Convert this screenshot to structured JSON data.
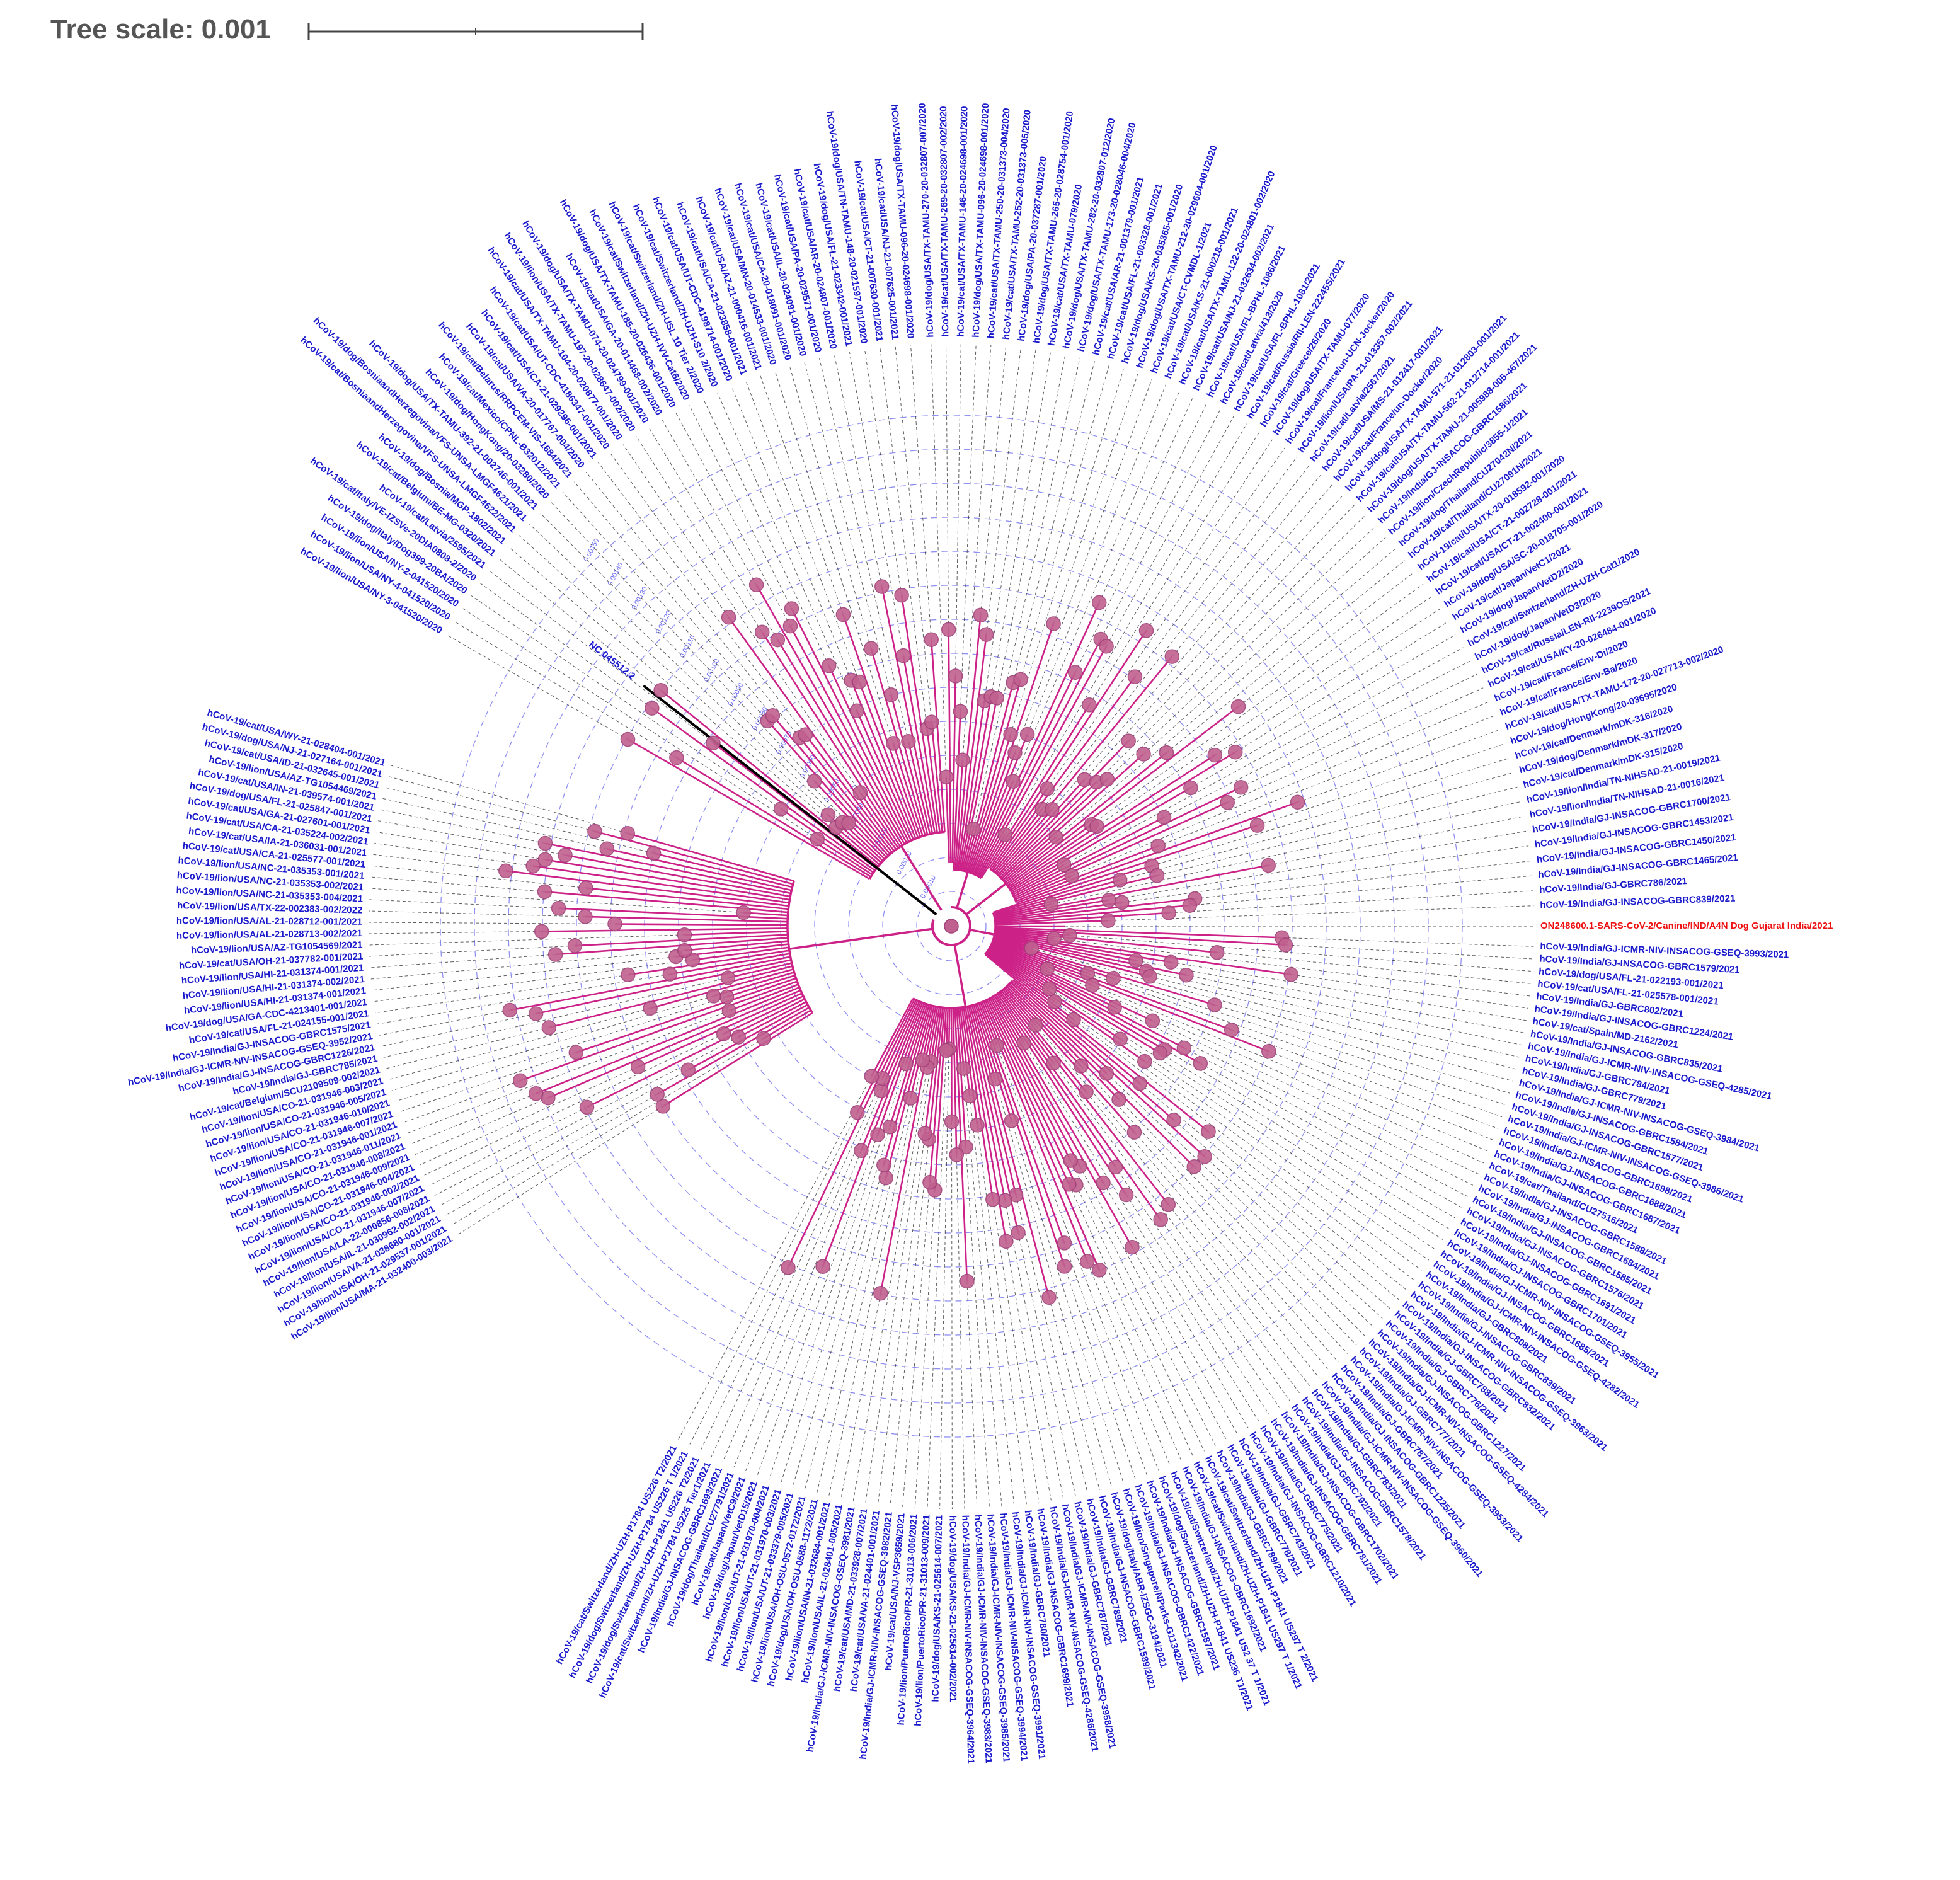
{
  "scale": {
    "label": "Tree scale: 0.001"
  },
  "colors": {
    "branch": "#cc2288",
    "node": "#c0608f",
    "node_stroke": "#a04078",
    "label": "#1a1acc",
    "highlight": "#ee1111",
    "outgroup": "#000000",
    "ring": "#6a6aee",
    "guide": "#333333"
  },
  "outgroup_label": "NC 045512.2",
  "ring_labels": [
    "0.00010",
    "0.00020",
    "0.00030",
    "0.00040",
    "0.00050",
    "0.00060",
    "0.00070",
    "0.00080",
    "0.00090",
    "0.00100",
    "0.00110",
    "0.00120",
    "0.00130",
    "0.00140",
    "0.00150"
  ],
  "leaves_upper_right": [
    "hCoV-19/dog/USA/TX-TAMU-270-20-032807-007/2020",
    "hCoV-19/cat/USA/TX-TAMU-269-20-032807-002/2020",
    "hCoV-19/cat/USA/TX-TAMU-146-20-024698-001/2020",
    "hCoV-19/dog/USA/TX-TAMU-096-20-024698-001/2020",
    "hCoV-19/cat/USA/TX-TAMU-250-20-031373-004/2020",
    "hCoV-19/cat/USA/TX-TAMU-252-20-031373-005/2020",
    "hCoV-19/dog/USA/PA-20-037287-001/2020",
    "hCoV-19/dog/USA/TX-TAMU-265-20-028754-001/2020",
    "hCoV-19/cat/USA/TX-TAMU-079/2020",
    "hCoV-19/dog/USA/TX-TAMU-282-20-032807-012/2020",
    "hCoV-19/dog/USA/TX-TAMU-173-20-028046-004/2020",
    "hCoV-19/cat/USA/AR-21-001379-001/2021",
    "hCoV-19/cat/USA/FL-21-003328-001/2021",
    "hCoV-19/dog/USA/KS-20-035365-001/2020",
    "hCoV-19/dog/USA/TX-TAMU-212-20-029604-001/2020",
    "hCoV-19/cat/USA/CT-CVMDL-1/2021",
    "hCoV-19/cat/USA/KS-21-000218-001/2021",
    "hCoV-19/cat/USA/TX-TAMU-122-20-024801-002/2020",
    "hCoV-19/cat/USA/NJ-21-032634-002/2021",
    "hCoV-19/cat/USA/FL-BPHL-1086/2021",
    "hCoV-19/cat/Latvia/413/2020",
    "hCoV-19/cat/USA/FL-BPHL-1081/2021",
    "hCoV-19/cat/Russia/RII-LEN-22245S/2021",
    "hCoV-19/cat/Greece/26/2020",
    "hCoV-19/dog/USA/TX-TAMU-077/2020",
    "hCoV-19/cat/France/un-UCN-Jocker/2020",
    "hCoV-19/lion/USA/PA-21-013357-002/2021",
    "hCoV-19/cat/Latvia/2567/2021",
    "hCoV-19/cat/USA/MS-21-012417-001/2021",
    "hCoV-19/cat/France/un-Docker/2020",
    "hCoV-19/dog/USA/TX-TAMU-571-21-012803-001/2021",
    "hCoV-19/cat/USA/TX-TAMU-562-21-012714-001/2021",
    "hCoV-19/dog/USA/TX-TAMU-21-005988-005-467/2021",
    "hCoV-19/India/GJ-INSACOG-GBRC1586/2021",
    "hCoV-19/lion/CzechRepublic/3855-1/2021",
    "hCoV-19/dog/Thailand/CU27042N/2021",
    "hCoV-19/cat/Thailand/CU27091N/2021",
    "hCoV-19/cat/USA/TX-20-018592-001/2020",
    "hCoV-19/cat/USA/CT-21-002728-001/2021",
    "hCoV-19/cat/USA/CT-21-002400-001/2021",
    "hCoV-19/dog/USA/SC-20-018705-001/2020",
    "hCoV-19/cat/Japan/VetC1/2021",
    "hCoV-19/dog/Japan/VetD2/2020",
    "hCoV-19/cat/Switzerland/ZH-UZH-Cat1/2020",
    "hCoV-19/dog/Japan/VetD3/2020",
    "hCoV-19/cat/Russia/LEN-RII-2239OS/2021",
    "hCoV-19/cat/USA/KY-20-026484-001/2020",
    "hCoV-19/cat/France/Env-Di/2020",
    "hCoV-19/cat/France/Env-Ba/2020",
    "hCoV-19/cat/USA/TX-TAMU-172-20-027713-002/2020",
    "hCoV-19/dog/HongKong/20-03695/2020",
    "hCoV-19/cat/Denmark/mDK-316/2020",
    "hCoV-19/dog/Denmark/mDK-317/2020",
    "hCoV-19/cat/Denmark/mDK-315/2020",
    "hCoV-19/lion/India/TN-NIHSAD-21-0019/2021",
    "hCoV-19/lion/India/TN-NIHSAD-21-0016/2021",
    "hCoV-19/India/GJ-INSACOG-GBRC1700/2021",
    "hCoV-19/India/GJ-INSACOG-GBRC1453/2021",
    "hCoV-19/India/GJ-INSACOG-GBRC1450/2021",
    "hCoV-19/India/GJ-INSACOG-GBRC1465/2021",
    "hCoV-19/India/GJ-GBRC786/2021",
    "hCoV-19/India/GJ-INSACOG-GBRC839/2021"
  ],
  "highlight_leaf": "ON248600.1-SARS-CoV-2/Canine/IND/A4N Dog Gujarat India/2021",
  "leaves_lower_right": [
    "hCoV-19/India/GJ-ICMR-NIV-INSACOG-GSEQ-3993/2021",
    "hCoV-19/India/GJ-INSACOG-GBRC1579/2021",
    "hCoV-19/dog/USA/FL-21-022193-001/2021",
    "hCoV-19/cat/USA/FL-21-025578-001/2021",
    "hCoV-19/India/GJ-GBRC802/2021",
    "hCoV-19/India/GJ-INSACOG-GBRC1224/2021",
    "hCoV-19/cat/Spain/MD-2162/2021",
    "hCoV-19/India/GJ-INSACOG-GBRC835/2021",
    "hCoV-19/India/GJ-ICMR-NIV-INSACOG-GSEQ-4285/2021",
    "hCoV-19/India/GJ-GBRC784/2021",
    "hCoV-19/India/GJ-GBRC779/2021",
    "hCoV-19/India/GJ-ICMR-NIV-INSACOG-GSEQ-3984/2021",
    "hCoV-19/India/GJ-INSACOG-GBRC1584/2021",
    "hCoV-19/India/GJ-INSACOG-GBRC1577/2021",
    "hCoV-19/India/GJ-ICMR-NIV-INSACOG-GSEQ-3986/2021",
    "hCoV-19/India/GJ-INSACOG-GBRC1698/2021",
    "hCoV-19/India/GJ-INSACOG-GBRC1688/2021",
    "hCoV-19/India/GJ-INSACOG-GBRC1687/2021",
    "hCoV-19/cat/Thailand/CU27516/2021",
    "hCoV-19/India/GJ-INSACOG-GBRC1588/2021",
    "hCoV-19/India/GJ-INSACOG-GBRC1684/2021",
    "hCoV-19/India/GJ-INSACOG-GBRC1585/2021",
    "hCoV-19/India/GJ-INSACOG-GBRC1576/2021",
    "hCoV-19/India/GJ-INSACOG-GBRC1691/2021",
    "hCoV-19/India/GJ-INSACOG-GBRC1701/2021",
    "hCoV-19/India/GJ-ICMR-NIV-INSACOG-GSEQ-3955/2021",
    "hCoV-19/India/GJ-INSACOG-GBRC1685/2021",
    "hCoV-19/India/GJ-ICMR-NIV-INSACOG-GSEQ-4282/2021",
    "hCoV-19/India/GJ-GBRC808/2021",
    "hCoV-19/India/GJ-INSACOG-GBRC839/2021",
    "hCoV-19/India/GJ-ICMR-NIV-INSACOG-GSEQ-3963/2021",
    "hCoV-19/India/GJ-INSACOG-GBRC832/2021",
    "hCoV-19/India/GJ-GBRC788/2021",
    "hCoV-19/India/GJ-GBRC776/2021",
    "hCoV-19/India/GJ-INSACOG-GBRC1227/2021",
    "hCoV-19/India/GJ-ICMR-NIV-INSACOG-GSEQ-4284/2021",
    "hCoV-19/India/GJ-GBRC777/2021",
    "hCoV-19/India/GJ-ICMR-NIV-INSACOG-GSEQ-3953/2021",
    "hCoV-19/India/GJ-GBRC787/2021",
    "hCoV-19/India/GJ-INSACOG-GBRC1225/2021",
    "hCoV-19/India/GJ-ICMR-NIV-INSACOG-GSEQ-3960/2021",
    "hCoV-19/India/GJ-GBRC783/2021",
    "hCoV-19/India/GJ-INSACOG-GBRC1578/2021",
    "hCoV-19/India/GJ-GBRC792/2021",
    "hCoV-19/India/GJ-INSACOG-GBRC1702/2021",
    "hCoV-19/India/GJ-INSACOG-GBRC781/2021",
    "hCoV-19/India/GJ-GBRC775/2021",
    "hCoV-19/India/GJ-INSACOG-GBRC1210/2021",
    "hCoV-19/India/GJ-GBRC743/2021",
    "hCoV-19/India/GJ-GBRC778/2021",
    "hCoV-19/India/GJ-GBRC789/2021",
    "hCoV-19/cat/Switzerland/ZH-UZH-P1841 US297 T 2/2021",
    "hCoV-19/cat/Switzerland/ZH-UZH-P1841 US297 T 1/2021",
    "hCoV-19/India/GJ-INSACOG-GBRC1692/2021",
    "hCoV-19/cat/Switzerland/ZH-UZH-P1841 US2 37 T 1/2021",
    "hCoV-19/dog/Switzerland/ZH-UZH-P1841 US236 T1/2021",
    "hCoV-19/India/GJ-INSACOG-GBRC1587/2021",
    "hCoV-19/India/GJ-INSACOG-GBRC1422/2021",
    "hCoV-19/lion/Singapore/NParks-G11342/2021",
    "hCoV-19/dog/Italy/ABR-IZSGC-3194/2021",
    "hCoV-19/India/GJ-INSACOG-GBRC1589/2021",
    "hCoV-19/India/GJ-GBRC789/2021",
    "hCoV-19/India/GJ-GBRC787/2021",
    "hCoV-19/India/GJ-ICMR-NIV-INSACOG-GSEQ-3958/2021",
    "hCoV-19/India/GJ-ICMR-NIV-INSACOG-GSEQ-4286/2021",
    "hCoV-19/India/GJ-INSACOG-GBRC1699/2021",
    "hCoV-19/India/GJ-GBRC780/2021",
    "hCoV-19/India/GJ-ICMR-NIV-INSACOG-GSEQ-3991/2021",
    "hCoV-19/India/GJ-ICMR-NIV-INSACOG-GSEQ-3994/2021",
    "hCoV-19/India/GJ-ICMR-NIV-INSACOG-GSEQ-3985/2021",
    "hCoV-19/India/GJ-ICMR-NIV-INSACOG-GSEQ-3983/2021",
    "hCoV-19/India/GJ-ICMR-NIV-INSACOG-GSEQ-3964/2021",
    "hCoV-19/dog/USA/KS-21-025614-002/2021",
    "hCoV-19/dog/USA/KS-21-025614-007/2021",
    "hCoV-19/lion/PuertoRico/PR-21-31013-009/2021",
    "hCoV-19/lion/PuertoRico/PR-21-31013-006/2021",
    "hCoV-19/cat/USA/NJ-VSP3659/2021",
    "hCoV-19/India/GJ-ICMR-NIV-INSACOG-GSEQ-3982/2021",
    "hCoV-19/cat/USA/VA-21-024401-001/2021",
    "hCoV-19/cat/USA/MD-21-033928-007/2021",
    "hCoV-19/India/GJ-ICMR-NIV-INSACOG-GSEQ-3981/2021",
    "hCoV-19/lion/USA/IL-21-028401-005/2021",
    "hCoV-19/lion/USA/IN-21-032684-001/2021",
    "hCoV-19/dog/USA/OH-OSU-0588-1172/2021",
    "hCoV-19/lion/USA/OH-OSU-0572-0172/2021",
    "hCoV-19/lion/USA/UT-21-033379-005/2021",
    "hCoV-19/lion/USA/UT-21-031970-003/2021",
    "hCoV-19/lion/USA/UT-21-031970-004/2021",
    "hCoV-19/dog/Japan/VetD15/2021",
    "hCoV-19/cat/Japan/VetC9/2021",
    "hCoV-19/dog/Thailand/CU27791/2021",
    "hCoV-19/India/GJ-INSACOG-GBRC1693/2021",
    "hCoV-19/cat/Switzerland/ZH-UZH-P1784 US226 Tier1/2021",
    "hCoV-19/dog/Switzerland/ZH-UZH-P1841 US226 T2/2021",
    "hCoV-19/dog/Switzerland/ZH-UZH-P1784 US226 T 1/2021",
    "hCoV-19/cat/Switzerland/ZH-UZH-P1784 US226 T2/2021"
  ],
  "leaves_left": [
    "hCoV-19/lion/USA/MA-21-032400-003/2021",
    "hCoV-19/lion/USA/OH-21-029537-001/2021",
    "hCoV-19/lion/USA/VA-21-038680-001/2021",
    "hCoV-19/lion/USA/IL-21-030962-002/2021",
    "hCoV-19/lion/USA/LA-22-000856-008/2021",
    "hCoV-19/lion/USA/CO-21-031946-007/2021",
    "hCoV-19/lion/USA/CO-21-031946-002/2021",
    "hCoV-19/lion/USA/CO-21-031946-004/2021",
    "hCoV-19/lion/USA/CO-21-031946-009/2021",
    "hCoV-19/lion/USA/CO-21-031946-008/2021",
    "hCoV-19/lion/USA/CO-21-031946-011/2021",
    "hCoV-19/lion/USA/CO-21-031946-001/2021",
    "hCoV-19/lion/USA/CO-21-031946-007/2021",
    "hCoV-19/lion/USA/CO-21-031946-010/2021",
    "hCoV-19/lion/USA/CO-21-031946-005/2021",
    "hCoV-19/lion/USA/CO-21-031946-003/2021",
    "hCoV-19/cat/Belgium/SCU2109509-002/2021",
    "hCoV-19/India/GJ-GBRC785/2021",
    "hCoV-19/India/GJ-INSACOG-GBRC1226/2021",
    "hCoV-19/India/GJ-ICMR-NIV-INSACOG-GSEQ-3952/2021",
    "hCoV-19/India/GJ-INSACOG-GBRC1575/2021",
    "hCoV-19/cat/USA/FL-21-024155-001/2021",
    "hCoV-19/dog/USA/GA-CDC-4213401-001/2021",
    "hCoV-19/lion/USA/HI-21-031374-001/2021",
    "hCoV-19/lion/USA/HI-21-031374-002/2021",
    "hCoV-19/lion/USA/HI-21-031374-001/2021",
    "hCoV-19/cat/USA/OH-21-037782-001/2021",
    "hCoV-19/lion/USA/AZ-TG1054569/2021",
    "hCoV-19/lion/USA/AL-21-028713-002/2021",
    "hCoV-19/lion/USA/AL-21-028712-001/2021",
    "hCoV-19/lion/USA/TX-22-002383-002/2022",
    "hCoV-19/lion/USA/NC-21-035353-004/2021",
    "hCoV-19/lion/USA/NC-21-035353-002/2021",
    "hCoV-19/lion/USA/NC-21-035353-001/2021",
    "hCoV-19/cat/USA/CA-21-025577-001/2021",
    "hCoV-19/cat/USA/IA-21-036031-001/2021",
    "hCoV-19/cat/USA/CA-21-035224-002/2021",
    "hCoV-19/cat/USA/GA-21-027601-001/2021",
    "hCoV-19/dog/USA/FL-21-025847-001/2021",
    "hCoV-19/cat/USA/IN-21-039574-001/2021",
    "hCoV-19/lion/USA/AZ-TG1054469/2021",
    "hCoV-19/cat/USA/ID-21-032645-001/2021",
    "hCoV-19/dog/USA/NJ-21-027164-001/2021",
    "hCoV-19/cat/USA/WY-21-028404-001/2021"
  ],
  "leaves_upper_left": [
    "hCoV-19/lion/USA/NY-3-041520/2020",
    "hCoV-19/lion/USA/NY-4-041520/2020",
    "hCoV-19/lion/USA/NY-2-041520/2020",
    "hCoV-19/dog/Italy/Dog399-20BA/2020",
    "hCoV-19/cat/Italy/VE-IZSVe-20DIA0808-2/2020",
    "hCoV-19/cat/Latvia/2595/2021",
    "hCoV-19/cat/Belgium/BE-MG-0320/2021",
    "hCoV-19/dog/Bosnia/MGP-1802/2021",
    "hCoV-19/cat/BosniaandHerzegovina/VFS-UNSA-LMGF4622/2021",
    "hCoV-19/dog/BosniaandHerzegovina/VFS-UNSA-LMGF4621/2021",
    "hCoV-19/dog/USA/TX-TAMU-392-21-002746-001/2021",
    "hCoV-19/dog/HongKong/20-03280/2020",
    "hCoV-19/cat/Mexico/CPNL-B32012/2021",
    "hCoV-19/cat/Belarus/RRPCEM-VIS-1684/2021",
    "hCoV-19/cat/USA/VA-20-017767-004/2020",
    "hCoV-19/cat/USA/CA-21-029296-001/2021",
    "hCoV-19/cat/USA/UT-CDC-4186347-001/2020",
    "hCoV-19/cat/USA/TX-TAMU-104-20-020877-001/2020",
    "hCoV-19/lion/USA/TX-TAMU-197-20-028647-002/2020",
    "hCoV-19/dog/USA/TX-TAMU-074-20-024799-001/2020",
    "hCoV-19/cat/USA/GA-20-014468-002/2020",
    "hCoV-19/dog/USA/TX-TAMU-185-20-026436-001/2020",
    "hCoV-19/cat/Switzerland/ZH-UZH-IVV-Cat6/2020",
    "hCoV-19/cat/Switzerland/ZH-USL 10 Tier 2/2020",
    "hCoV-19/cat/Switzerland/ZH-UZH-S10 2/2020",
    "hCoV-19/cat/USA/UT-CDC-4198714-001/2020",
    "hCoV-19/cat/USA/CA-21-023858-001/2021",
    "hCoV-19/cat/USA/AZ-21-000416-001/2021",
    "hCoV-19/cat/USA/MN-20-014533-001/2020",
    "hCoV-19/cat/USA/CA-20-018091-001/2020",
    "hCoV-19/cat/USA/IL-20-024091-001/2020",
    "hCoV-19/cat/USA/PA-20-029571-001/2020",
    "hCoV-19/cat/USA/AR-20-024807-001/2020",
    "hCoV-19/dog/USA/FL-21-023342-001/2021",
    "hCoV-19/dog/USA/TN-TAMU-148-20-021597-001/2020",
    "hCoV-19/cat/USA/CT-21-007630-001/2021",
    "hCoV-19/cat/USA/NJ-21-007625-001/2021",
    "hCoV-19/dog/USA/TX-TAMU-096-20-024698-001/2020"
  ]
}
